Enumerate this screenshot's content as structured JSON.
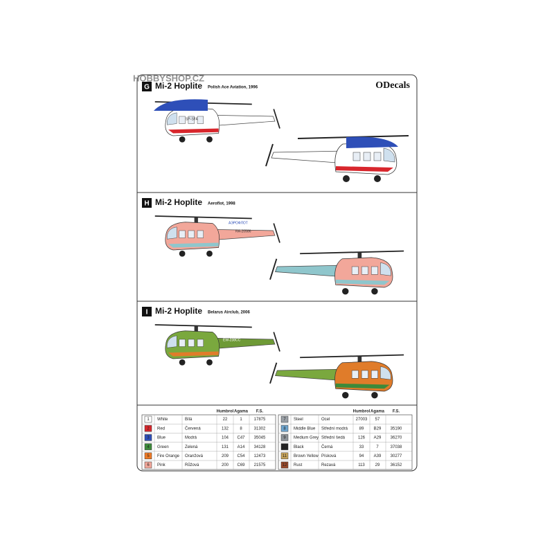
{
  "watermark": "HOBBYSHOP.CZ",
  "brand": "ODecals",
  "sections": [
    {
      "letter": "G",
      "title": "Mi-2 Hoplite",
      "subtitle": "Polish Ace Aviation, 1996",
      "registration": "SP-SFA"
    },
    {
      "letter": "H",
      "title": "Mi-2 Hoplite",
      "subtitle": "Aeroflot, 1998",
      "registration": "RA-20586",
      "marking": "АЭРОФЛОТ"
    },
    {
      "letter": "I",
      "title": "Mi-2 Hoplite",
      "subtitle": "Belarus Airclub, 2006",
      "registration": "EW-238CC"
    }
  ],
  "table": {
    "header": [
      "Humbrol",
      "Agama",
      "F.S."
    ],
    "rows": [
      [
        "1",
        "White",
        "Bílá",
        "22",
        "1",
        "17875"
      ],
      [
        "2",
        "Red",
        "Červená",
        "132",
        "8",
        "31302"
      ],
      [
        "3",
        "Blue",
        "Modrá",
        "104",
        "C47",
        "35045"
      ],
      [
        "4",
        "Green",
        "Zelená",
        "131",
        "A14",
        "34128"
      ],
      [
        "5",
        "Fire Orange",
        "Oranžová",
        "209",
        "C54",
        "12473"
      ],
      [
        "6",
        "Pink",
        "Růžová",
        "200",
        "C69",
        "21575"
      ],
      [
        "7",
        "Steel",
        "Ocel",
        "27003",
        "57",
        null
      ],
      [
        "8",
        "Middle Blue",
        "Střední modrá",
        "89",
        "B29",
        "35190"
      ],
      [
        "9",
        "Medium Grey",
        "Střední šedá",
        "126",
        "A29",
        "36270"
      ],
      [
        "10",
        "Black",
        "Černá",
        "33",
        "7",
        "37038"
      ],
      [
        "11",
        "Brown Yellow",
        "Písková",
        "94",
        "A39",
        "30277"
      ],
      [
        "12",
        "Rust",
        "Rezavá",
        "113",
        "29",
        "36152"
      ]
    ],
    "swatches": [
      "#ffffff",
      "#d8262c",
      "#2e4fb8",
      "#3d8a3a",
      "#ef7a25",
      "#f2a79a",
      "#9aa0a6",
      "#6fa6cf",
      "#8e949a",
      "#222222",
      "#c8a45a",
      "#9b4a2a"
    ]
  }
}
